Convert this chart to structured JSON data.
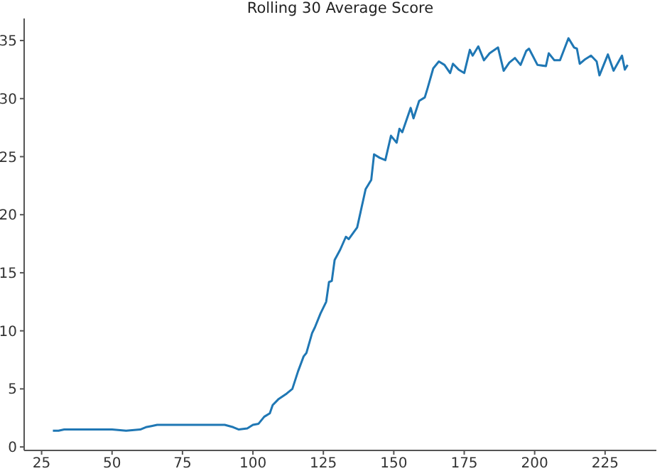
{
  "chart_data": {
    "type": "line",
    "title": "Rolling 30 Average Score",
    "x": [
      29,
      31,
      33,
      36,
      40,
      45,
      50,
      55,
      60,
      62,
      64,
      66,
      70,
      75,
      80,
      85,
      90,
      93,
      95,
      98,
      100,
      102,
      104,
      106,
      107,
      109,
      112,
      114,
      116,
      118,
      119,
      121,
      122,
      124,
      126,
      127,
      128,
      129,
      131,
      133,
      134,
      137,
      140,
      142,
      143,
      145,
      147,
      149,
      151,
      152,
      153,
      156,
      157,
      159,
      161,
      162,
      164,
      166,
      168,
      170,
      171,
      173,
      175,
      177,
      178,
      180,
      182,
      184,
      187,
      189,
      191,
      193,
      195,
      197,
      198,
      201,
      204,
      205,
      207,
      209,
      212,
      214,
      215,
      216,
      218,
      220,
      222,
      223,
      226,
      228,
      231,
      232,
      233
    ],
    "series": [
      {
        "color": "#1f77b4",
        "values": [
          1.4,
          1.4,
          1.5,
          1.5,
          1.5,
          1.5,
          1.5,
          1.4,
          1.5,
          1.7,
          1.8,
          1.9,
          1.9,
          1.9,
          1.9,
          1.9,
          1.9,
          1.7,
          1.5,
          1.6,
          1.9,
          2.0,
          2.6,
          2.9,
          3.6,
          4.1,
          4.6,
          5.0,
          6.5,
          7.8,
          8.1,
          9.8,
          10.3,
          11.5,
          12.5,
          14.2,
          14.3,
          16.1,
          17.0,
          18.1,
          17.9,
          18.9,
          22.2,
          23.0,
          25.2,
          24.9,
          24.7,
          26.8,
          26.2,
          27.4,
          27.1,
          29.2,
          28.3,
          29.8,
          30.1,
          30.9,
          32.6,
          33.2,
          32.9,
          32.2,
          33.0,
          32.5,
          32.2,
          34.2,
          33.7,
          34.5,
          33.3,
          33.9,
          34.4,
          32.4,
          33.1,
          33.5,
          32.9,
          34.1,
          34.3,
          32.9,
          32.8,
          33.9,
          33.3,
          33.3,
          35.2,
          34.4,
          34.3,
          33.0,
          33.4,
          33.7,
          33.2,
          32.0,
          33.8,
          32.4,
          33.7,
          32.5,
          32.9
        ]
      }
    ],
    "xlim": [
      18.8,
      243.2
    ],
    "xticks": [
      25,
      50,
      75,
      100,
      125,
      150,
      175,
      200,
      225
    ],
    "ylim": [
      -0.3,
      36.9
    ],
    "yticks": [
      0,
      5,
      10,
      15,
      20,
      25,
      30,
      35
    ],
    "grid": false,
    "legend": false,
    "marker": "none",
    "line_style": "solid"
  }
}
